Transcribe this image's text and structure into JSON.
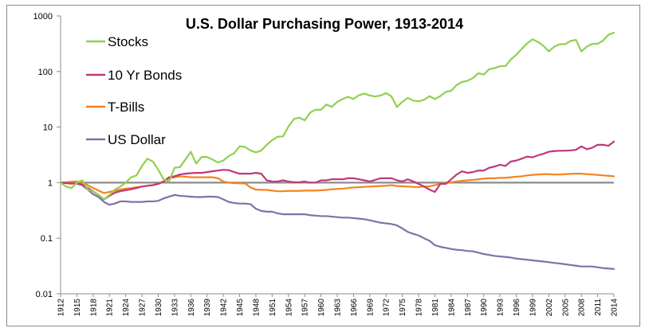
{
  "chart_data": {
    "type": "line",
    "title": "U.S. Dollar Purchasing Power, 1913-2014",
    "xlabel": "",
    "ylabel": "",
    "y_scale": "log",
    "ylim": [
      0.01,
      1000
    ],
    "y_ticks": [
      "0.01",
      "0.1",
      "1",
      "10",
      "100",
      "1000"
    ],
    "y_tick_values": [
      0.01,
      0.1,
      1,
      10,
      100,
      1000
    ],
    "xlim": [
      1912,
      2014
    ],
    "x_ticks": [
      "1912",
      "1915",
      "1918",
      "1921",
      "1924",
      "1927",
      "1930",
      "1933",
      "1936",
      "1939",
      "1942",
      "1945",
      "1948",
      "1951",
      "1954",
      "1957",
      "1960",
      "1963",
      "1966",
      "1969",
      "1972",
      "1975",
      "1978",
      "1981",
      "1984",
      "1987",
      "1990",
      "1993",
      "1996",
      "1999",
      "2002",
      "2005",
      "2008",
      "2011",
      "2014"
    ],
    "grid": false,
    "legend_position": "top-left",
    "reference_line": {
      "y": 1,
      "color": "#8c8c8c"
    },
    "series": [
      {
        "name": "Stocks",
        "color": "#92d050",
        "x": [
          1912,
          1913,
          1914,
          1915,
          1916,
          1917,
          1918,
          1919,
          1920,
          1921,
          1922,
          1923,
          1924,
          1925,
          1926,
          1927,
          1928,
          1929,
          1930,
          1931,
          1932,
          1933,
          1934,
          1935,
          1936,
          1937,
          1938,
          1939,
          1940,
          1941,
          1942,
          1943,
          1944,
          1945,
          1946,
          1947,
          1948,
          1949,
          1950,
          1951,
          1952,
          1953,
          1954,
          1955,
          1956,
          1957,
          1958,
          1959,
          1960,
          1961,
          1962,
          1963,
          1964,
          1965,
          1966,
          1967,
          1968,
          1969,
          1970,
          1971,
          1972,
          1973,
          1974,
          1975,
          1976,
          1977,
          1978,
          1979,
          1980,
          1981,
          1982,
          1983,
          1984,
          1985,
          1986,
          1987,
          1988,
          1989,
          1990,
          1991,
          1992,
          1993,
          1994,
          1995,
          1996,
          1997,
          1998,
          1999,
          2000,
          2001,
          2002,
          2003,
          2004,
          2005,
          2006,
          2007,
          2008,
          2009,
          2010,
          2011,
          2012,
          2013,
          2014
        ],
        "values": [
          1.0,
          0.85,
          0.8,
          1.0,
          1.1,
          0.75,
          0.7,
          0.6,
          0.5,
          0.6,
          0.75,
          0.85,
          1.0,
          1.25,
          1.35,
          2.0,
          2.7,
          2.4,
          1.7,
          1.15,
          1.05,
          1.85,
          1.9,
          2.6,
          3.6,
          2.2,
          2.9,
          2.9,
          2.6,
          2.3,
          2.5,
          3.0,
          3.4,
          4.5,
          4.4,
          3.8,
          3.5,
          3.8,
          4.8,
          5.8,
          6.7,
          6.8,
          10.2,
          13.9,
          14.8,
          13.2,
          18.2,
          20.5,
          20.5,
          25.5,
          23.0,
          28.5,
          32.0,
          35.0,
          32.0,
          37.5,
          40.0,
          37.0,
          35.5,
          37.0,
          41.0,
          35.5,
          23.0,
          28.5,
          33.5,
          30.0,
          29.0,
          31.0,
          36.0,
          32.0,
          36.0,
          43.0,
          45.0,
          57.0,
          65.0,
          68.0,
          76.0,
          93.0,
          88.0,
          110.0,
          115.0,
          125.0,
          125.0,
          165.0,
          200.0,
          255.0,
          320.0,
          380.0,
          340.0,
          290.0,
          230.0,
          280.0,
          310.0,
          310.0,
          355.0,
          370.0,
          230.0,
          280.0,
          315.0,
          315.0,
          360.0,
          460.0,
          500.0
        ]
      },
      {
        "name": "10 Yr Bonds",
        "color": "#c0387c",
        "x": [
          1912,
          1913,
          1914,
          1915,
          1916,
          1917,
          1918,
          1919,
          1920,
          1921,
          1922,
          1923,
          1924,
          1925,
          1926,
          1927,
          1928,
          1929,
          1930,
          1931,
          1932,
          1933,
          1934,
          1935,
          1936,
          1937,
          1938,
          1939,
          1940,
          1941,
          1942,
          1943,
          1944,
          1945,
          1946,
          1947,
          1948,
          1949,
          1950,
          1951,
          1952,
          1953,
          1954,
          1955,
          1956,
          1957,
          1958,
          1959,
          1960,
          1961,
          1962,
          1963,
          1964,
          1965,
          1966,
          1967,
          1968,
          1969,
          1970,
          1971,
          1972,
          1973,
          1974,
          1975,
          1976,
          1977,
          1978,
          1979,
          1980,
          1981,
          1982,
          1983,
          1984,
          1985,
          1986,
          1987,
          1988,
          1989,
          1990,
          1991,
          1992,
          1993,
          1994,
          1995,
          1996,
          1997,
          1998,
          1999,
          2000,
          2001,
          2002,
          2003,
          2004,
          2005,
          2006,
          2007,
          2008,
          2009,
          2010,
          2011,
          2012,
          2013,
          2014
        ],
        "values": [
          1.0,
          0.98,
          0.96,
          0.97,
          0.92,
          0.8,
          0.7,
          0.6,
          0.5,
          0.58,
          0.66,
          0.7,
          0.73,
          0.76,
          0.8,
          0.85,
          0.88,
          0.9,
          0.95,
          1.05,
          1.25,
          1.3,
          1.4,
          1.45,
          1.48,
          1.5,
          1.5,
          1.55,
          1.6,
          1.65,
          1.7,
          1.68,
          1.55,
          1.45,
          1.45,
          1.45,
          1.5,
          1.45,
          1.1,
          1.05,
          1.05,
          1.1,
          1.05,
          1.02,
          1.02,
          1.05,
          1.0,
          1.0,
          1.1,
          1.1,
          1.15,
          1.15,
          1.15,
          1.2,
          1.2,
          1.15,
          1.1,
          1.05,
          1.12,
          1.2,
          1.2,
          1.2,
          1.1,
          1.05,
          1.15,
          1.05,
          0.95,
          0.85,
          0.75,
          0.68,
          0.95,
          0.95,
          1.15,
          1.4,
          1.6,
          1.5,
          1.55,
          1.65,
          1.65,
          1.85,
          1.95,
          2.1,
          2.0,
          2.4,
          2.5,
          2.7,
          2.95,
          2.85,
          3.1,
          3.3,
          3.6,
          3.7,
          3.75,
          3.75,
          3.8,
          3.9,
          4.5,
          4.0,
          4.25,
          4.8,
          4.8,
          4.6,
          5.5
        ]
      },
      {
        "name": "T-Bills",
        "color": "#f58220",
        "x": [
          1912,
          1913,
          1914,
          1915,
          1916,
          1917,
          1918,
          1919,
          1920,
          1921,
          1922,
          1923,
          1924,
          1925,
          1926,
          1927,
          1928,
          1929,
          1930,
          1931,
          1932,
          1933,
          1934,
          1935,
          1936,
          1937,
          1938,
          1939,
          1940,
          1941,
          1942,
          1943,
          1944,
          1945,
          1946,
          1947,
          1948,
          1949,
          1950,
          1951,
          1952,
          1953,
          1954,
          1955,
          1956,
          1957,
          1958,
          1959,
          1960,
          1961,
          1962,
          1963,
          1964,
          1965,
          1966,
          1967,
          1968,
          1969,
          1970,
          1971,
          1972,
          1973,
          1974,
          1975,
          1976,
          1977,
          1978,
          1979,
          1980,
          1981,
          1982,
          1983,
          1984,
          1985,
          1986,
          1987,
          1988,
          1989,
          1990,
          1991,
          1992,
          1993,
          1994,
          1995,
          1996,
          1997,
          1998,
          1999,
          2000,
          2001,
          2002,
          2003,
          2004,
          2005,
          2006,
          2007,
          2008,
          2009,
          2010,
          2011,
          2012,
          2013,
          2014
        ],
        "values": [
          1.0,
          1.02,
          1.04,
          1.05,
          1.0,
          0.9,
          0.8,
          0.72,
          0.65,
          0.68,
          0.72,
          0.75,
          0.78,
          0.8,
          0.83,
          0.85,
          0.88,
          0.9,
          0.95,
          1.05,
          1.2,
          1.25,
          1.3,
          1.28,
          1.25,
          1.25,
          1.25,
          1.25,
          1.25,
          1.2,
          1.05,
          1.0,
          0.98,
          0.97,
          0.97,
          0.82,
          0.75,
          0.74,
          0.74,
          0.72,
          0.7,
          0.7,
          0.71,
          0.71,
          0.71,
          0.72,
          0.72,
          0.72,
          0.73,
          0.74,
          0.76,
          0.77,
          0.78,
          0.8,
          0.82,
          0.83,
          0.84,
          0.85,
          0.86,
          0.87,
          0.88,
          0.9,
          0.87,
          0.86,
          0.85,
          0.84,
          0.83,
          0.85,
          0.86,
          0.9,
          0.95,
          0.98,
          1.02,
          1.05,
          1.08,
          1.1,
          1.12,
          1.15,
          1.18,
          1.2,
          1.2,
          1.22,
          1.22,
          1.25,
          1.28,
          1.3,
          1.35,
          1.38,
          1.4,
          1.42,
          1.42,
          1.4,
          1.4,
          1.42,
          1.44,
          1.45,
          1.45,
          1.42,
          1.4,
          1.38,
          1.35,
          1.33,
          1.3
        ]
      },
      {
        "name": "US Dollar",
        "color": "#7f72a8",
        "x": [
          1912,
          1913,
          1914,
          1915,
          1916,
          1917,
          1918,
          1919,
          1920,
          1921,
          1922,
          1923,
          1924,
          1925,
          1926,
          1927,
          1928,
          1929,
          1930,
          1931,
          1932,
          1933,
          1934,
          1935,
          1936,
          1937,
          1938,
          1939,
          1940,
          1941,
          1942,
          1943,
          1944,
          1945,
          1946,
          1947,
          1948,
          1949,
          1950,
          1951,
          1952,
          1953,
          1954,
          1955,
          1956,
          1957,
          1958,
          1959,
          1960,
          1961,
          1962,
          1963,
          1964,
          1965,
          1966,
          1967,
          1968,
          1969,
          1970,
          1971,
          1972,
          1973,
          1974,
          1975,
          1976,
          1977,
          1978,
          1979,
          1980,
          1981,
          1982,
          1983,
          1984,
          1985,
          1986,
          1987,
          1988,
          1989,
          1990,
          1991,
          1992,
          1993,
          1994,
          1995,
          1996,
          1997,
          1998,
          1999,
          2000,
          2001,
          2002,
          2003,
          2004,
          2005,
          2006,
          2007,
          2008,
          2009,
          2010,
          2011,
          2012,
          2013,
          2014
        ],
        "values": [
          1.0,
          0.98,
          0.97,
          0.96,
          0.9,
          0.75,
          0.62,
          0.55,
          0.45,
          0.4,
          0.42,
          0.46,
          0.46,
          0.45,
          0.45,
          0.45,
          0.46,
          0.46,
          0.47,
          0.52,
          0.56,
          0.6,
          0.58,
          0.57,
          0.56,
          0.55,
          0.55,
          0.56,
          0.56,
          0.55,
          0.5,
          0.45,
          0.43,
          0.42,
          0.42,
          0.41,
          0.34,
          0.31,
          0.3,
          0.3,
          0.28,
          0.27,
          0.27,
          0.27,
          0.27,
          0.27,
          0.26,
          0.255,
          0.25,
          0.25,
          0.245,
          0.24,
          0.235,
          0.235,
          0.23,
          0.225,
          0.22,
          0.21,
          0.2,
          0.19,
          0.185,
          0.18,
          0.17,
          0.15,
          0.13,
          0.12,
          0.112,
          0.1,
          0.09,
          0.075,
          0.07,
          0.067,
          0.064,
          0.062,
          0.061,
          0.059,
          0.058,
          0.055,
          0.052,
          0.05,
          0.048,
          0.047,
          0.046,
          0.045,
          0.043,
          0.042,
          0.041,
          0.04,
          0.039,
          0.038,
          0.037,
          0.036,
          0.035,
          0.034,
          0.033,
          0.032,
          0.031,
          0.031,
          0.031,
          0.03,
          0.029,
          0.0285,
          0.028
        ]
      }
    ]
  }
}
